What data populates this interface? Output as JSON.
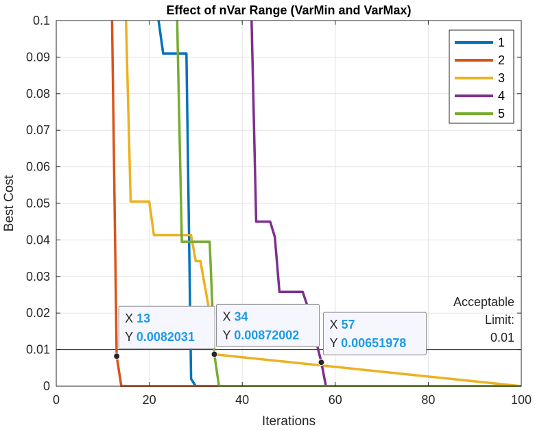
{
  "chart_data": {
    "type": "line",
    "title": "Effect of nVar Range (VarMin and VarMax)",
    "xlabel": "Iterations",
    "ylabel": "Best Cost",
    "xlim": [
      0,
      100
    ],
    "ylim": [
      0,
      0.1
    ],
    "xticks": [
      0,
      20,
      40,
      60,
      80,
      100
    ],
    "xtick_labels": [
      "0",
      "20",
      "40",
      "60",
      "80",
      "100"
    ],
    "yticks": [
      0,
      0.01,
      0.02,
      0.03,
      0.04,
      0.05,
      0.06,
      0.07,
      0.08,
      0.09,
      0.1
    ],
    "ytick_labels": [
      "0",
      "0.01",
      "0.02",
      "0.03",
      "0.04",
      "0.05",
      "0.06",
      "0.07",
      "0.08",
      "0.09",
      "0.1"
    ],
    "grid": true,
    "legend_position": "top-right",
    "series": [
      {
        "name": "1",
        "color": "#0072BD",
        "x": [
          22,
          23,
          28,
          29,
          30,
          100
        ],
        "y": [
          0.1,
          0.091,
          0.091,
          0.002,
          0,
          0
        ]
      },
      {
        "name": "2",
        "color": "#D95319",
        "x": [
          12,
          13,
          14,
          100
        ],
        "y": [
          0.1,
          0.0082031,
          0,
          0
        ]
      },
      {
        "name": "3",
        "color": "#EDB120",
        "x": [
          15,
          16,
          20,
          21,
          29,
          30,
          31,
          33,
          34,
          100
        ],
        "y": [
          0.1,
          0.0505,
          0.0505,
          0.0413,
          0.0413,
          0.0342,
          0.0342,
          0.02,
          0.0087,
          0
        ]
      },
      {
        "name": "4",
        "color": "#7E2F8E",
        "x": [
          42,
          43,
          46,
          47,
          48,
          53,
          54,
          57,
          58,
          100
        ],
        "y": [
          0.1,
          0.045,
          0.045,
          0.0408,
          0.0258,
          0.0258,
          0.022,
          0.00651978,
          0,
          0
        ]
      },
      {
        "name": "5",
        "color": "#77AC30",
        "x": [
          26,
          27,
          33,
          34,
          35,
          100
        ],
        "y": [
          0.1,
          0.0395,
          0.0395,
          0.00872002,
          0,
          0
        ]
      }
    ],
    "reference_line": {
      "y": 0.01,
      "label_lines": [
        "Acceptable",
        "Limit:",
        "0.01"
      ]
    },
    "datatips": [
      {
        "x": 13,
        "y": 0.0082031,
        "x_text": "13",
        "y_text": "0.0082031"
      },
      {
        "x": 34,
        "y": 0.00872002,
        "x_text": "34",
        "y_text": "0.00872002"
      },
      {
        "x": 57,
        "y": 0.00651978,
        "x_text": "57",
        "y_text": "0.00651978"
      }
    ],
    "datatip_labels": {
      "x": "X",
      "y": "Y"
    }
  }
}
